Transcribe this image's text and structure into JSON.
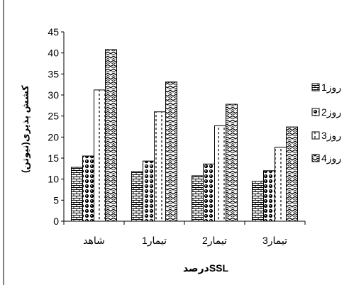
{
  "chart_data": {
    "type": "bar",
    "title": "",
    "xlabel": "درصدSSL",
    "ylabel": "کشش پذیری(نیوتن)",
    "categories": [
      "شاهد",
      "تیمار1",
      "تیمار2",
      "تیمار3"
    ],
    "ylim": [
      0,
      45
    ],
    "yticks": [
      0,
      5,
      10,
      15,
      20,
      25,
      30,
      35,
      40,
      45
    ],
    "grid": false,
    "legend_position": "right",
    "series": [
      {
        "name": "روز1",
        "values": [
          12.8,
          11.8,
          10.8,
          9.5
        ]
      },
      {
        "name": "روز2",
        "values": [
          15.5,
          14.3,
          13.6,
          12.0
        ]
      },
      {
        "name": "روز3",
        "values": [
          31.2,
          26.0,
          22.7,
          17.6
        ]
      },
      {
        "name": "روز4",
        "values": [
          40.8,
          33.1,
          27.8,
          22.4
        ]
      }
    ]
  }
}
